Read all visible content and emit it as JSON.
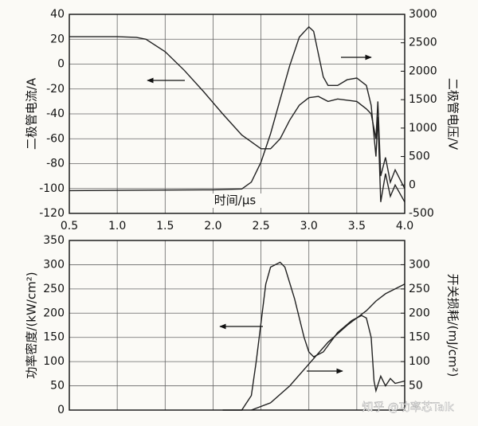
{
  "chart_data": [
    {
      "type": "line",
      "xlabel": "时间/μs",
      "ylabel": "二极管电流/A",
      "y2label": "二极管电压/V",
      "xlim": [
        0.5,
        4.0
      ],
      "xticks": [
        0.5,
        {
          "value": 1,
          "label": "1.0"
        },
        1.5,
        {
          "value": 2,
          "label": "2.0"
        },
        2.5,
        {
          "value": 3,
          "label": "3.0"
        },
        3.5,
        {
          "value": 4,
          "label": "4.0"
        }
      ],
      "ylim": [
        -120,
        40
      ],
      "yticks": [
        40,
        20,
        0,
        -20,
        -40,
        -60,
        -80,
        -100,
        -120
      ],
      "y2lim": [
        -500,
        3000
      ],
      "y2ticks": [
        3000,
        2500,
        2000,
        1500,
        1000,
        500,
        0,
        -500
      ],
      "grid": true,
      "series": [
        {
          "color": "#222222",
          "x": [
            0.5,
            1.0,
            1.2,
            1.3,
            1.5,
            1.7,
            1.9,
            2.1,
            2.3,
            2.5,
            2.6,
            2.7,
            2.8,
            2.9,
            3.0,
            3.1,
            3.2,
            3.3,
            3.5,
            3.6,
            3.65,
            3.7,
            3.72,
            3.75,
            3.8,
            3.85,
            3.9,
            4.0
          ],
          "values": [
            22,
            22,
            21.5,
            20,
            10,
            -5,
            -22,
            -40,
            -57,
            -68,
            -68,
            -60,
            -45,
            -33,
            -27,
            -26,
            -30,
            -28,
            -30,
            -36,
            -40,
            -60,
            -30,
            -90,
            -75,
            -95,
            -85,
            -100
          ]
        },
        {
          "color": "#222222",
          "axis": "y2",
          "x": [
            0.5,
            1.0,
            1.5,
            2.0,
            2.3,
            2.4,
            2.5,
            2.6,
            2.7,
            2.8,
            2.9,
            3.0,
            3.05,
            3.1,
            3.15,
            3.2,
            3.3,
            3.4,
            3.5,
            3.6,
            3.65,
            3.7,
            3.72,
            3.75,
            3.8,
            3.85,
            3.9,
            4.0
          ],
          "values": [
            -100,
            -95,
            -90,
            -85,
            -70,
            50,
            400,
            900,
            1500,
            2100,
            2600,
            2780,
            2700,
            2300,
            1900,
            1750,
            1750,
            1850,
            1880,
            1750,
            1400,
            500,
            1200,
            -300,
            200,
            -200,
            0,
            -300
          ]
        }
      ]
    },
    {
      "type": "line",
      "ylabel": "功率密度/(kW/cm²)",
      "y2label": "开关损耗/(mJ/cm²)",
      "xlim": [
        0.5,
        4.0
      ],
      "ylim": [
        0,
        350
      ],
      "yticks": [
        350,
        300,
        250,
        200,
        150,
        100,
        50,
        0
      ],
      "y2lim": [
        0,
        350
      ],
      "y2ticks": [
        300,
        250,
        200,
        150,
        100,
        50
      ],
      "grid": true,
      "series": [
        {
          "color": "#222222",
          "x": [
            2.1,
            2.3,
            2.4,
            2.45,
            2.5,
            2.55,
            2.6,
            2.7,
            2.75,
            2.85,
            2.95,
            3.0,
            3.05,
            3.15,
            3.3,
            3.45,
            3.55,
            3.6,
            3.65,
            3.68,
            3.7,
            3.75,
            3.8,
            3.85,
            3.9,
            4.0
          ],
          "values": [
            0,
            0,
            30,
            100,
            180,
            260,
            295,
            305,
            295,
            230,
            150,
            120,
            110,
            120,
            160,
            185,
            195,
            190,
            150,
            60,
            40,
            70,
            50,
            65,
            55,
            60
          ]
        },
        {
          "color": "#222222",
          "axis": "y2",
          "x": [
            2.4,
            2.6,
            2.8,
            3.0,
            3.2,
            3.4,
            3.6,
            3.7,
            3.8,
            4.0
          ],
          "values": [
            0,
            15,
            50,
            95,
            140,
            175,
            205,
            225,
            240,
            260
          ]
        }
      ]
    }
  ],
  "watermark": "知乎 @功率芯Talk"
}
